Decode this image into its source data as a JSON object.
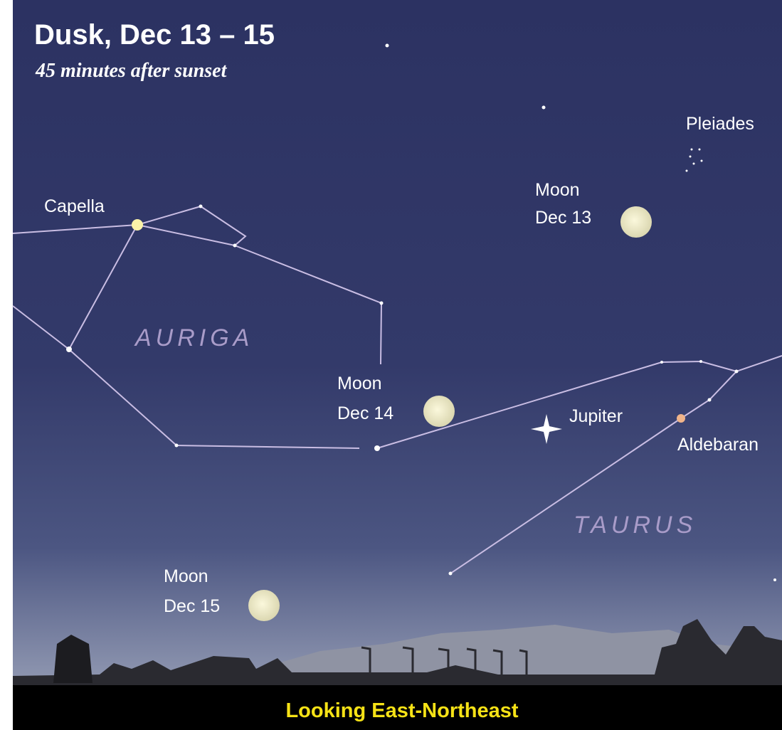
{
  "header": {
    "title": "Dusk, Dec 13 – 15",
    "subtitle": "45 minutes after sunset"
  },
  "stars": [
    {
      "label": "Capella"
    },
    {
      "label": "Pleiades"
    },
    {
      "label": "Jupiter"
    },
    {
      "label": "Aldebaran"
    }
  ],
  "constellations": [
    {
      "label": "AURIGA"
    },
    {
      "label": "TAURUS"
    }
  ],
  "moons": [
    {
      "label": "Moon",
      "date": "Dec 13"
    },
    {
      "label": "Moon",
      "date": "Dec 14"
    },
    {
      "label": "Moon",
      "date": "Dec 15"
    }
  ],
  "footer": {
    "direction": "Looking East-Northeast"
  }
}
